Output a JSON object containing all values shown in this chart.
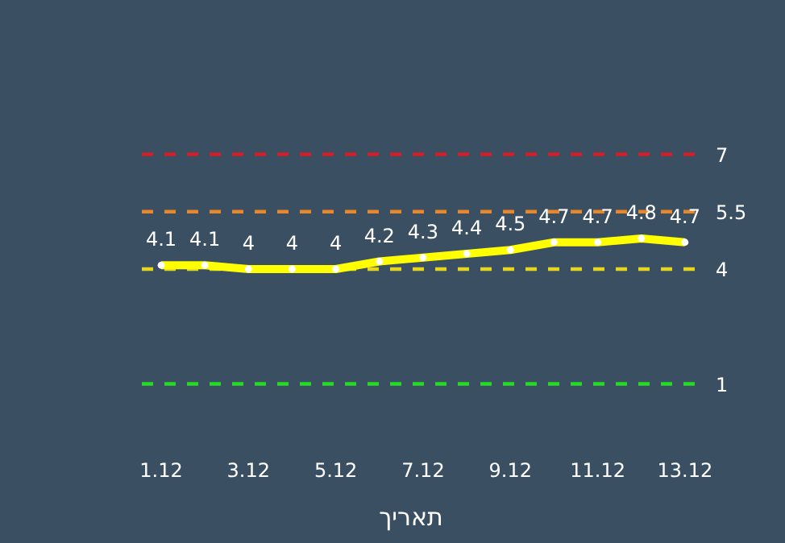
{
  "chart_data": {
    "type": "line",
    "xlabel": "תאריך",
    "categories": [
      "1.12",
      null,
      "3.12",
      null,
      "5.12",
      null,
      "7.12",
      null,
      "9.12",
      null,
      "11.12",
      null,
      "13.12"
    ],
    "series": [
      {
        "color": "#ffff00",
        "values": [
          4.1,
          4.1,
          4,
          4,
          4,
          4.2,
          4.3,
          4.4,
          4.5,
          4.7,
          4.7,
          4.8,
          4.7
        ]
      }
    ],
    "data_labels": true,
    "marker": "circle",
    "line_style": "solid",
    "ref_lines": [
      {
        "axis": "y",
        "value": 7,
        "label": "7",
        "color": "#d0202a",
        "line_style": "dashed"
      },
      {
        "axis": "y",
        "value": 5.5,
        "label": "5.5",
        "color": "#e8862a",
        "line_style": "dashed"
      },
      {
        "axis": "y",
        "value": 4,
        "label": "4",
        "color": "#e6d51f",
        "line_style": "dashed"
      },
      {
        "axis": "y",
        "value": 1,
        "label": "1",
        "color": "#22dd22",
        "line_style": "dashed"
      }
    ]
  }
}
